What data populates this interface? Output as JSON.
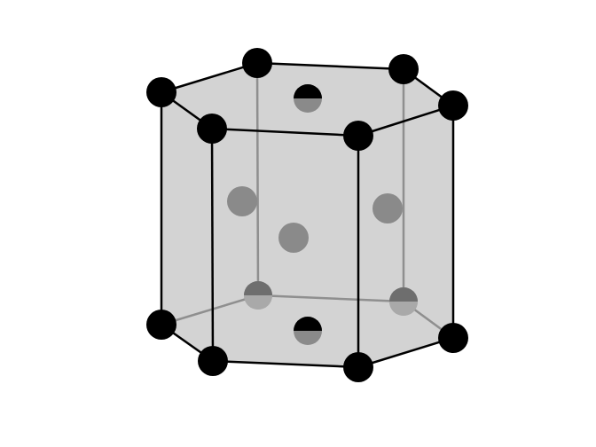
{
  "diagram": {
    "type": "hexagonal-close-packed-unit-cell",
    "colors": {
      "background": "#ffffff",
      "face_fill": "#d3d3d3",
      "front_edge": "#000000",
      "back_edge": "#8f8f8f",
      "corner_atom": "#000000",
      "interior_atom": "#8a8a8a",
      "hidden_atom": "#a9a9a9"
    },
    "counts": {
      "corner_atoms": 12,
      "face_center_atoms": 2,
      "interior_atoms": 3
    }
  }
}
